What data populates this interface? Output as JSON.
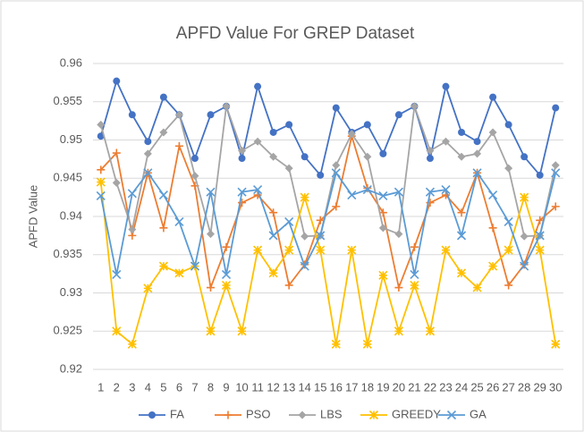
{
  "chart_data": {
    "type": "line",
    "title": "APFD Value For GREP Dataset",
    "y_label": "APFD Value",
    "categories": [
      1,
      2,
      3,
      4,
      5,
      6,
      7,
      8,
      9,
      10,
      11,
      12,
      13,
      14,
      15,
      16,
      17,
      18,
      19,
      20,
      21,
      22,
      23,
      24,
      25,
      26,
      27,
      28,
      29,
      30
    ],
    "ylim": [
      0.92,
      0.96
    ],
    "yticks": [
      0.92,
      0.925,
      0.93,
      0.935,
      0.94,
      0.945,
      0.95,
      0.955,
      0.96
    ],
    "grid": true,
    "legend": "bottom",
    "series": [
      {
        "name": "FA",
        "color": "#4472c4",
        "marker": "circle",
        "values": [
          0.9505,
          0.9577,
          0.9533,
          0.9498,
          0.9556,
          0.9533,
          0.9476,
          0.9533,
          0.9544,
          0.9476,
          0.957,
          0.951,
          0.952,
          0.9478,
          0.9454,
          0.9542,
          0.951,
          0.952,
          0.9482,
          0.9533,
          0.9544,
          0.9476,
          0.957,
          0.951,
          0.9498,
          0.9556,
          0.952,
          0.9478,
          0.9454,
          0.9542
        ]
      },
      {
        "name": "PSO",
        "color": "#ed7d31",
        "marker": "plus",
        "values": [
          0.9461,
          0.9483,
          0.9375,
          0.9457,
          0.9385,
          0.9492,
          0.944,
          0.9307,
          0.936,
          0.9418,
          0.9428,
          0.9405,
          0.931,
          0.9337,
          0.9395,
          0.9413,
          0.9505,
          0.9437,
          0.9405,
          0.9307,
          0.936,
          0.9418,
          0.9428,
          0.9405,
          0.9457,
          0.9385,
          0.931,
          0.9337,
          0.9395,
          0.9413
        ]
      },
      {
        "name": "LBS",
        "color": "#a5a5a5",
        "marker": "diamond",
        "values": [
          0.952,
          0.9444,
          0.9383,
          0.9482,
          0.951,
          0.9533,
          0.9453,
          0.9377,
          0.9544,
          0.9486,
          0.9498,
          0.9478,
          0.9463,
          0.9374,
          0.9375,
          0.9467,
          0.9508,
          0.9478,
          0.9385,
          0.9377,
          0.9544,
          0.9486,
          0.9498,
          0.9478,
          0.9482,
          0.951,
          0.9463,
          0.9374,
          0.9375,
          0.9467
        ]
      },
      {
        "name": "GREEDY",
        "color": "#ffc000",
        "marker": "star",
        "values": [
          0.9445,
          0.925,
          0.9233,
          0.9306,
          0.9335,
          0.9326,
          0.9335,
          0.925,
          0.931,
          0.925,
          0.9356,
          0.9326,
          0.9356,
          0.9425,
          0.9356,
          0.9233,
          0.9356,
          0.9233,
          0.9323,
          0.925,
          0.931,
          0.925,
          0.9356,
          0.9326,
          0.9307,
          0.9335,
          0.9356,
          0.9425,
          0.9356,
          0.9233
        ]
      },
      {
        "name": "GA",
        "color": "#5b9bd5",
        "marker": "x",
        "values": [
          0.9427,
          0.9324,
          0.943,
          0.9457,
          0.9428,
          0.9393,
          0.9335,
          0.9432,
          0.9324,
          0.9432,
          0.9435,
          0.9375,
          0.9393,
          0.9335,
          0.9375,
          0.9457,
          0.9428,
          0.9435,
          0.9427,
          0.9432,
          0.9324,
          0.9432,
          0.9435,
          0.9375,
          0.9457,
          0.9428,
          0.9393,
          0.9335,
          0.9375,
          0.9457
        ]
      }
    ]
  }
}
